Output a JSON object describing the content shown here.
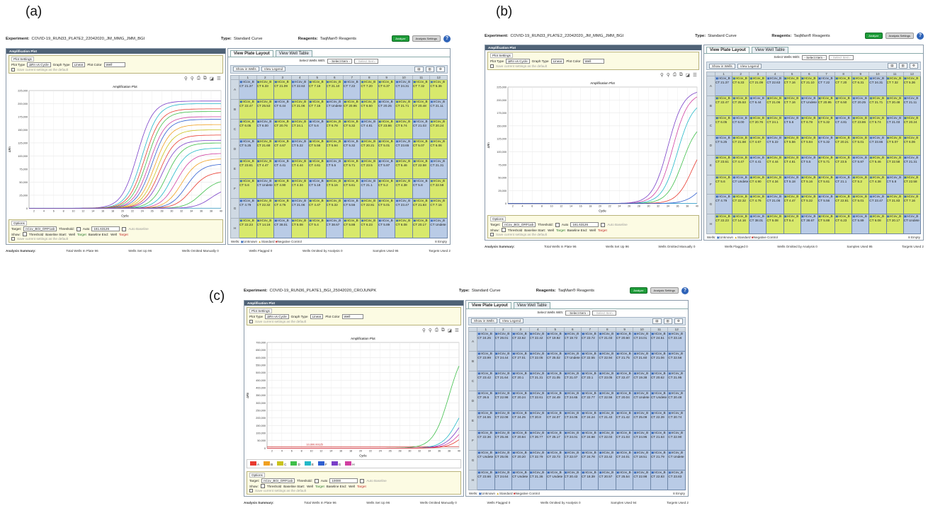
{
  "labels": [
    "(a)",
    "(b)",
    "(c)"
  ],
  "panels": [
    {
      "experiment_label": "Experiment:",
      "experiment": "COVID-19_RUN33_PLATE2_22042020_JM_MMG_JMM_BGI",
      "type_label": "Type:",
      "type": "Standard Curve",
      "reagents_label": "Reagents:",
      "reagents": "TaqMan® Reagents",
      "analyze": "Analyze",
      "analysis_settings": "Analysis Settings",
      "plot_title": "Amplification Plot",
      "plot_settings": "Plot Settings",
      "plot_type_label": "Plot Type",
      "plot_type": "ΔRn vs Cycle",
      "graph_type_label": "Graph Type",
      "graph_type": "Linear",
      "plot_color_label": "Plot Color",
      "plot_color": "Well",
      "save_default": "Save current settings as the default",
      "chart_title": "Amplification Plot",
      "xlabel": "Cycle",
      "ylabel": "ΔRn",
      "y_ticks": [
        "0",
        "25,000",
        "50,000",
        "75,000",
        "100,000",
        "125,000",
        "150,000",
        "175,000",
        "200,000",
        "225,000"
      ],
      "x_ticks": [
        "2",
        "4",
        "6",
        "8",
        "10",
        "12",
        "14",
        "16",
        "18",
        "20",
        "22",
        "24",
        "26",
        "28",
        "30",
        "32",
        "34",
        "36",
        "38",
        "40"
      ],
      "options": "Options",
      "target_label": "Target:",
      "target": "nCov_BGI_ORF1ab",
      "threshold_label": "Threshold:",
      "auto": "Auto",
      "threshold": "161.63126",
      "auto_baseline": "Auto Baseline",
      "show_label": "Show:",
      "show_threshold": "Threshold",
      "baseline_start": "Baseline Start:",
      "baseline_end": "Baseline End:",
      "well_label": "Well",
      "target_sym": "Target",
      "view_plate": "View Plate Layout",
      "view_well": "View Well Table",
      "select_wells": "Select Wells With:",
      "select_item": "- Select Item -",
      "show_in_wells": "Show in Wells",
      "view_legend": "View Legend",
      "wells_label": "Wells:",
      "unknown": "Unknown",
      "standard": "Standard",
      "negative": "Negative Control",
      "empty": "Empty",
      "summary_label": "Analysis Summary:",
      "total_wells": "Total Wells In Plate 96",
      "wells_setup": "Wells Set Up 96",
      "omitted_manual": "Wells Omitted Manually 0",
      "flagged": "Wells Flagged 0",
      "omitted_analysis": "Wells Omitted by Analysis 0",
      "samples_used": "Samples Used 95",
      "targets_used": "Targets Used 2",
      "rows": [
        "A",
        "B",
        "C",
        "D",
        "E",
        "F",
        "G",
        "H"
      ],
      "cols": [
        "1",
        "2",
        "3",
        "4",
        "5",
        "6",
        "7",
        "8",
        "9",
        "10",
        "11",
        "12"
      ],
      "well_name": "nCov_B",
      "ct_prefix": "CT",
      "ct": [
        [
          "21.37",
          "6.33",
          "21.09",
          "22.63",
          "7.16",
          "21.10",
          "7.22",
          "7.20",
          "6.37",
          "24.31",
          "7.32",
          "5.36"
        ],
        [
          "22.47",
          "25.53",
          "6.44",
          "21.06",
          "7.16",
          "Undete",
          "20.95",
          "6.50",
          "20.25",
          "21.71",
          "20.48",
          "21.11"
        ],
        [
          "6.05",
          "6.00",
          "20.76",
          "24.1",
          "5.6",
          "6.78",
          "5.32",
          "4.81",
          "23.86",
          "5.74",
          "21.03",
          "20.24"
        ],
        [
          "5.25",
          "21.68",
          "4.67",
          "5.22",
          "5.56",
          "5.94",
          "5.32",
          "20.21",
          "5.01",
          "23.65",
          "5.07",
          "6.06"
        ],
        [
          "23.61",
          "4.47",
          "4.41",
          "4.44",
          "4.61",
          "5.5",
          "5.71",
          "23.5",
          "5.87",
          "5.46",
          "22.58",
          "21.31"
        ],
        [
          "5.6",
          "Undete",
          "4.90",
          "4.34",
          "5.18",
          "5.16",
          "5.61",
          "21.1",
          "5.2",
          "4.38",
          "5.8",
          "22.58"
        ],
        [
          "4.79",
          "22.32",
          "4.76",
          "21.06",
          "4.47",
          "5.32",
          "5.56",
          "22.81",
          "5.01",
          "23.47",
          "21.83",
          "7.16"
        ],
        [
          "22.23",
          "14.16",
          "38.01",
          "5.08",
          "5.4",
          "38.67",
          "5.88",
          "6.23",
          "5.89",
          "6.08",
          "20.17",
          "Undete"
        ]
      ]
    },
    {
      "experiment_label": "Experiment:",
      "experiment": "COVID-19_RUN33_PLATE2_22042020_JM_MMG_JMM_BGI",
      "type_label": "Type:",
      "type": "Standard Curve",
      "reagents_label": "Reagents:",
      "reagents": "TaqMan® Reagents",
      "analyze": "Analyze",
      "analysis_settings": "Analysis Settings",
      "plot_title": "Amplification Plot",
      "plot_settings": "Plot Settings",
      "plot_type_label": "Plot Type",
      "plot_type": "ΔRn vs Cycle",
      "graph_type_label": "Graph Type",
      "graph_type": "Linear",
      "plot_color_label": "Plot Color",
      "plot_color": "Well",
      "save_default": "Save current settings as the default",
      "chart_title": "Amplification Plot",
      "xlabel": "Cycle",
      "ylabel": "ΔRn",
      "y_ticks": [
        "0",
        "25,000",
        "50,000",
        "75,000",
        "100,000",
        "125,000",
        "150,000",
        "175,000",
        "200,000",
        "225,000"
      ],
      "x_ticks": [
        "2",
        "4",
        "6",
        "8",
        "10",
        "12",
        "14",
        "16",
        "18",
        "20",
        "22",
        "24",
        "26",
        "28",
        "30",
        "32",
        "34",
        "36",
        "38",
        "40"
      ],
      "options": "Options",
      "target_label": "Target:",
      "target": "nCov_BGI_ORF1ab",
      "threshold_label": "Threshold:",
      "auto": "Auto",
      "threshold": "161.63126",
      "auto_baseline": "Auto Baseline",
      "show_label": "Show:",
      "show_threshold": "Threshold",
      "baseline_start": "Baseline Start:",
      "baseline_end": "Baseline End:",
      "well_label": "Well",
      "target_sym": "Target",
      "view_plate": "View Plate Layout",
      "view_well": "View Well Table",
      "select_wells": "Select Wells With:",
      "select_item": "- Select Item -",
      "show_in_wells": "Show in Wells",
      "view_legend": "View Legend",
      "wells_label": "Wells:",
      "unknown": "Unknown",
      "standard": "Standard",
      "negative": "Negative Control",
      "empty": "Empty",
      "summary_label": "Analysis Summary:",
      "total_wells": "Total Wells In Plate 96",
      "wells_setup": "Wells Set Up 96",
      "omitted_manual": "Wells Omitted Manually 0",
      "flagged": "Wells Flagged 0",
      "omitted_analysis": "Wells Omitted by Analysis 0",
      "samples_used": "Samples Used 95",
      "targets_used": "Targets Used 2",
      "rows": [
        "A",
        "B",
        "C",
        "D",
        "E",
        "F",
        "G",
        "H"
      ],
      "cols": [
        "1",
        "2",
        "3",
        "4",
        "5",
        "6",
        "7",
        "8",
        "9",
        "10",
        "11",
        "12"
      ],
      "well_name": "nCov_B",
      "ct_prefix": "CT",
      "ct": [
        [
          "21.37",
          "6.33",
          "21.09",
          "22.63",
          "7.16",
          "21.10",
          "7.22",
          "7.20",
          "6.31",
          "24.31",
          "7.32",
          "5.36"
        ],
        [
          "22.47",
          "25.53",
          "6.44",
          "21.06",
          "7.16",
          "Undete",
          "20.95",
          "6.50",
          "20.25",
          "21.71",
          "20.48",
          "21.11"
        ],
        [
          "6.05",
          "6.00",
          "20.76",
          "24.1",
          "5.6",
          "6.78",
          "5.32",
          "4.81",
          "23.86",
          "5.74",
          "21.03",
          "20.24"
        ],
        [
          "5.25",
          "21.68",
          "4.67",
          "5.22",
          "5.56",
          "5.94",
          "5.32",
          "20.21",
          "5.01",
          "23.65",
          "5.07",
          "6.06"
        ],
        [
          "23.61",
          "4.47",
          "4.41",
          "4.44",
          "4.61",
          "5.5",
          "5.71",
          "23.5",
          "5.87",
          "5.46",
          "22.58",
          "21.31"
        ],
        [
          "5.6",
          "Undete",
          "4.90",
          "4.34",
          "5.18",
          "5.16",
          "5.61",
          "21.1",
          "5.2",
          "4.38",
          "5.8",
          "22.58"
        ],
        [
          "4.79",
          "22.32",
          "4.76",
          "21.06",
          "4.47",
          "5.32",
          "5.56",
          "22.81",
          "5.01",
          "23.47",
          "21.83",
          "7.16"
        ],
        [
          "22.23",
          "14.16",
          "38.01",
          "5.08",
          "5.4",
          "38.67",
          "5.88",
          "6.23",
          "5.89",
          "6.08",
          "20.17",
          "Undete"
        ]
      ]
    },
    {
      "experiment_label": "Experiment:",
      "experiment": "COVID-19_RUN36_PLATE1_BGI_25042020_CROJUNPK",
      "type_label": "Type:",
      "type": "Standard Curve",
      "reagents_label": "Reagents:",
      "reagents": "TaqMan® Reagents",
      "analyze": "Analyze",
      "analysis_settings": "Analysis Settings",
      "plot_title": "Amplification Plot",
      "plot_settings": "Plot Settings",
      "plot_type_label": "Plot Type",
      "plot_type": "ΔRn vs Cycle",
      "graph_type_label": "Graph Type",
      "graph_type": "Linear",
      "plot_color_label": "Plot Color",
      "plot_color": "Well",
      "save_default": "Save current settings as the default",
      "chart_title": "Amplification Plot",
      "xlabel": "Cycle",
      "ylabel": "ΔRn",
      "y_ticks": [
        "0",
        "50,000",
        "100,000",
        "150,000",
        "200,000",
        "250,000",
        "300,000",
        "350,000",
        "400,000",
        "450,000",
        "500,000",
        "550,000",
        "600,000",
        "650,000",
        "700,000"
      ],
      "x_ticks": [
        "2",
        "4",
        "6",
        "8",
        "10",
        "12",
        "14",
        "16",
        "18",
        "20",
        "22",
        "24",
        "26",
        "28",
        "30",
        "32",
        "34",
        "36",
        "38",
        "40"
      ],
      "threshold_annot": "10,000.00125",
      "legend_items": [
        "A",
        "B",
        "C",
        "D",
        "E",
        "F",
        "G",
        "H"
      ],
      "legend_colors": [
        "#e83a2f",
        "#f0a020",
        "#c9c21c",
        "#3fbf4a",
        "#22b8c8",
        "#2f5fd0",
        "#7a3fc8",
        "#d03fa0"
      ],
      "options": "Options",
      "target_label": "Target:",
      "target": "nCov_BGI_ORF1ab",
      "threshold_label": "Threshold:",
      "auto": "Auto",
      "threshold": "10000",
      "auto_baseline": "Auto Baseline",
      "show_label": "Show:",
      "show_threshold": "Threshold",
      "baseline_start": "Baseline Start:",
      "baseline_end": "Baseline End:",
      "well_label": "Well",
      "target_sym": "Target",
      "view_plate": "View Plate Layout",
      "view_well": "View Well Table",
      "select_wells": "Select Wells With:",
      "select_item": "- Select Item -",
      "show_in_wells": "Show in Wells",
      "view_legend": "View Legend",
      "wells_label": "Wells:",
      "unknown": "Unknown",
      "standard": "Standard",
      "negative": "Negative Control",
      "empty": "Empty",
      "summary_label": "Analysis Summary:",
      "total_wells": "Total Wells In Plate 96",
      "wells_setup": "Wells Set Up 96",
      "omitted_manual": "Wells Omitted Manually 0",
      "flagged": "Wells Flagged 0",
      "omitted_analysis": "Wells Omitted by Analysis 0",
      "samples_used": "Samples Used 94",
      "targets_used": "Targets Used 2",
      "rows": [
        "A",
        "B",
        "C",
        "D",
        "E",
        "F",
        "G",
        "H"
      ],
      "cols": [
        "1",
        "2",
        "3",
        "4",
        "5",
        "6",
        "7",
        "8",
        "9",
        "10",
        "11",
        "12"
      ],
      "well_name": "nCov_B",
      "ct_prefix": "CT",
      "ct": [
        [
          "24.25",
          "26.01",
          "22.62",
          "22.42",
          "19.92",
          "19.72",
          "23.72",
          "21.03",
          "20.60",
          "24.01",
          "24.51",
          "23.16"
        ],
        [
          "23.99",
          "24.44",
          "27.01",
          "22.05",
          "25.02",
          "Undete",
          "22.55",
          "22.94",
          "21.75",
          "21.60",
          "21.06",
          "22.56"
        ],
        [
          "23.42",
          "21.64",
          "20.1",
          "21.31",
          "21.05",
          "21.07",
          "23.1",
          "23.05",
          "22.47",
          "19.38",
          "20.62",
          "21.95"
        ],
        [
          "26.5",
          "22.98",
          "20.24",
          "22.61",
          "24.49",
          "24.65",
          "22.77",
          "22.56",
          "20.04",
          "Undete",
          "Undete",
          "20.48"
        ],
        [
          "24.55",
          "22.08",
          "24.25",
          "20.8",
          "24.07",
          "24.05",
          "24.24",
          "21.43",
          "21.42",
          "25.09",
          "22.39",
          "20.74"
        ],
        [
          "22.36",
          "25.46",
          "20.84",
          "26.77",
          "25.17",
          "24.01",
          "24.68",
          "22.03",
          "21.03",
          "24.95",
          "21.63",
          "22.90"
        ],
        [
          "Undete",
          "25.05",
          "20.20",
          "22.79",
          "23.73",
          "22.07",
          "24.78",
          "23.42",
          "24.01",
          "18.51",
          "21.79",
          "Undete"
        ],
        [
          "23.66",
          "24.64",
          "Undete",
          "21.36",
          "Undete",
          "20.43",
          "18.39",
          "20.57",
          "25.54",
          "22.98",
          "22.83",
          "23.83"
        ]
      ]
    }
  ],
  "chart_data": [
    {
      "type": "line",
      "xlabel": "Cycle",
      "ylabel": "ΔRn",
      "title": "Amplification Plot",
      "xlim": [
        1,
        40
      ],
      "ylim": [
        0,
        225000
      ],
      "grid": true,
      "threshold": 161.63126,
      "series": [
        {
          "ct": 20,
          "plateau": 205000,
          "color": "#7a3fc8"
        },
        {
          "ct": 21,
          "plateau": 200000,
          "color": "#22b8c8"
        },
        {
          "ct": 21.5,
          "plateau": 190000,
          "color": "#e83a2f"
        },
        {
          "ct": 22,
          "plateau": 185000,
          "color": "#3fbf4a"
        },
        {
          "ct": 22.5,
          "plateau": 175000,
          "color": "#d03fa0"
        },
        {
          "ct": 23,
          "plateau": 170000,
          "color": "#2f5fd0"
        },
        {
          "ct": 23.5,
          "plateau": 160000,
          "color": "#f0a020"
        },
        {
          "ct": 24,
          "plateau": 150000,
          "color": "#c9c21c"
        },
        {
          "ct": 24.5,
          "plateau": 140000,
          "color": "#e83a2f"
        },
        {
          "ct": 25,
          "plateau": 130000,
          "color": "#7a3fc8"
        },
        {
          "ct": 26,
          "plateau": 125000,
          "color": "#3fbf4a"
        },
        {
          "ct": 27,
          "plateau": 115000,
          "color": "#22b8c8"
        },
        {
          "ct": 28,
          "plateau": 105000,
          "color": "#d03fa0"
        },
        {
          "ct": 29,
          "plateau": 95000,
          "color": "#f0a020"
        },
        {
          "ct": 30,
          "plateau": 85000,
          "color": "#2f5fd0"
        },
        {
          "ct": 31,
          "plateau": 70000,
          "color": "#e83a2f"
        },
        {
          "ct": 33,
          "plateau": 55000,
          "color": "#3fbf4a"
        },
        {
          "ct": 35,
          "plateau": 40000,
          "color": "#7a3fc8"
        }
      ]
    },
    {
      "type": "line",
      "xlabel": "Cycle",
      "ylabel": "ΔRn",
      "title": "Amplification Plot",
      "xlim": [
        1,
        40
      ],
      "ylim": [
        0,
        225000
      ],
      "grid": true,
      "threshold": 161.63126,
      "series": [
        {
          "ct": 31,
          "plateau": 220000,
          "color": "#7a3fc8"
        },
        {
          "ct": 32,
          "plateau": 215000,
          "color": "#d03fa0"
        },
        {
          "ct": 33,
          "plateau": 200000,
          "color": "#22b8c8"
        },
        {
          "ct": 34,
          "plateau": 160000,
          "color": "#3fbf4a"
        },
        {
          "ct": 36,
          "plateau": 130000,
          "color": "#e83a2f"
        },
        {
          "ct": 38,
          "plateau": 60000,
          "color": "#2f5fd0"
        }
      ]
    },
    {
      "type": "line",
      "xlabel": "Cycle",
      "ylabel": "ΔRn",
      "title": "Amplification Plot",
      "xlim": [
        1,
        40
      ],
      "ylim": [
        0,
        700000
      ],
      "grid": true,
      "threshold": 10000,
      "series": [
        {
          "ct": 35,
          "plateau": 700000,
          "color": "#3fbf4a"
        },
        {
          "ct": 37,
          "plateau": 400000,
          "color": "#22b8c8"
        },
        {
          "ct": 37.5,
          "plateau": 320000,
          "color": "#7a3fc8"
        },
        {
          "ct": 38,
          "plateau": 260000,
          "color": "#d03fa0"
        },
        {
          "ct": 38.5,
          "plateau": 200000,
          "color": "#e83a2f"
        }
      ]
    }
  ]
}
